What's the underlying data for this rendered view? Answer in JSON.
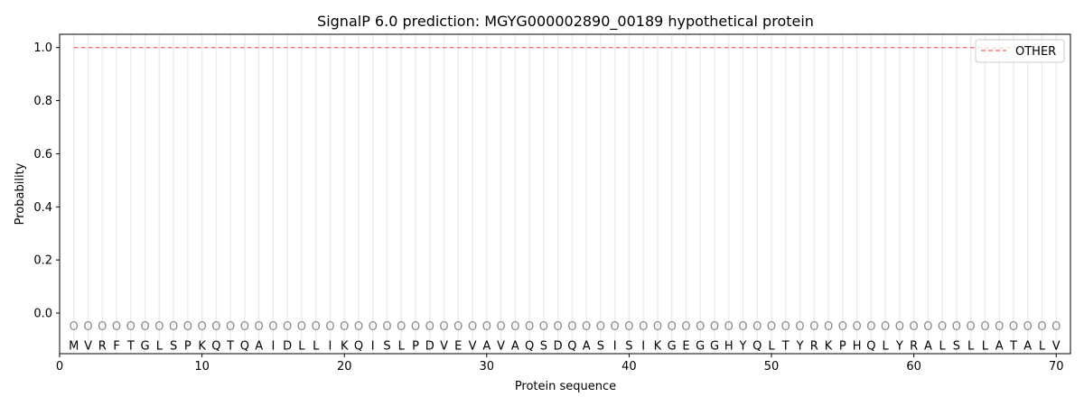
{
  "chart_data": {
    "type": "line",
    "title": "SignalP 6.0 prediction: MGYG000002890_00189 hypothetical protein",
    "xlabel": "Protein sequence",
    "ylabel": "Probability",
    "xlim": [
      0,
      71
    ],
    "ylim": [
      -0.153,
      1.05
    ],
    "xticks": [
      0,
      10,
      20,
      30,
      40,
      50,
      60,
      70
    ],
    "yticks": [
      0.0,
      0.2,
      0.4,
      0.6,
      0.8,
      1.0
    ],
    "ytick_labels": [
      "0.0",
      "0.2",
      "0.4",
      "0.6",
      "0.8",
      "1.0"
    ],
    "grid": "vertical lines at each residue",
    "legend_placement": "top-right",
    "sequence": [
      "M",
      "V",
      "R",
      "F",
      "T",
      "G",
      "L",
      "S",
      "P",
      "K",
      "Q",
      "T",
      "Q",
      "A",
      "I",
      "D",
      "L",
      "L",
      "I",
      "K",
      "Q",
      "I",
      "S",
      "L",
      "P",
      "D",
      "V",
      "E",
      "V",
      "A",
      "V",
      "A",
      "Q",
      "S",
      "D",
      "Q",
      "A",
      "S",
      "I",
      "S",
      "I",
      "K",
      "G",
      "E",
      "G",
      "G",
      "H",
      "Y",
      "Q",
      "L",
      "T",
      "Y",
      "R",
      "K",
      "P",
      "H",
      "Q",
      "L",
      "Y",
      "R",
      "A",
      "L",
      "S",
      "L",
      "L",
      "A",
      "T",
      "A",
      "L",
      "V"
    ],
    "predicted_label": "O",
    "series": [
      {
        "name": "OTHER",
        "color": "#f08080",
        "style": "dashed",
        "x_range": [
          1,
          70
        ],
        "value": 1.0
      }
    ]
  }
}
